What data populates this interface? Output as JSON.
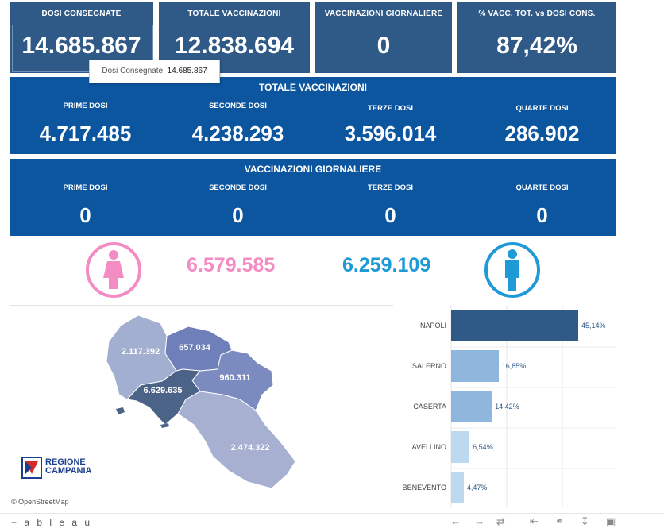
{
  "kpis": [
    {
      "title": "DOSI  CONSEGNATE",
      "value": "14.685.867"
    },
    {
      "title": "TOTALE VACCINAZIONI",
      "value": "12.838.694"
    },
    {
      "title": "VACCINAZIONI GIORNALIERE",
      "value": "0"
    },
    {
      "title": "% VACC. TOT. vs DOSI CONS.",
      "value": "87,42%"
    }
  ],
  "tooltip": {
    "label": "Dosi Consegnate:",
    "value": "14.685.867"
  },
  "totale": {
    "title": "TOTALE VACCINAZIONI",
    "cols": [
      {
        "label": "PRIME DOSI",
        "value": "4.717.485"
      },
      {
        "label": "SECONDE DOSI",
        "value": "4.238.293"
      },
      {
        "label": "TERZE DOSI",
        "value": "3.596.014"
      },
      {
        "label": "QUARTE DOSI",
        "value": "286.902"
      }
    ]
  },
  "giornaliere": {
    "title": "VACCINAZIONI GIORNALIERE",
    "cols": [
      {
        "label": "PRIME DOSI",
        "value": "0"
      },
      {
        "label": "SECONDE DOSI",
        "value": "0"
      },
      {
        "label": "TERZE DOSI",
        "value": "0"
      },
      {
        "label": "QUARTE DOSI",
        "value": "0"
      }
    ]
  },
  "gender": {
    "female": {
      "value": "6.579.585",
      "color": "#f48cc4",
      "icon": "female-icon"
    },
    "male": {
      "value": "6.259.109",
      "color": "#1e9ad6",
      "icon": "male-icon"
    }
  },
  "map": {
    "provinces": [
      {
        "name": "caserta",
        "value": "2.117.392",
        "color": "#a3afd0"
      },
      {
        "name": "benevento",
        "value": "657.034",
        "color": "#6f7fb9"
      },
      {
        "name": "avellino",
        "value": "960.311",
        "color": "#7b8bc0"
      },
      {
        "name": "napoli",
        "value": "6.629.635",
        "color": "#4a6387"
      },
      {
        "name": "salerno",
        "value": "2.474.322",
        "color": "#a7b0d1"
      }
    ],
    "logo_line1": "REGIONE",
    "logo_line2": "CAMPANIA",
    "attribution": "© OpenStreetMap"
  },
  "chart_data": {
    "type": "bar",
    "orientation": "horizontal",
    "categories": [
      "NAPOLI",
      "SALERNO",
      "CASERTA",
      "AVELLINO",
      "BENEVENTO"
    ],
    "values": [
      45.14,
      16.85,
      14.42,
      6.54,
      4.47
    ],
    "value_labels": [
      "45,14%",
      "16,85%",
      "14,42%",
      "6,54%",
      "4,47%"
    ],
    "colors": [
      "#2f5a88",
      "#8fb6dc",
      "#8fb6dc",
      "#bcd9ef",
      "#bcd9ef"
    ],
    "grid": true
  },
  "toolbar": {
    "logo": "+ a b l e a u",
    "icons": [
      "undo-icon",
      "redo-icon",
      "revert-icon",
      "reset-icon",
      "share-icon",
      "download-icon",
      "fullscreen-icon"
    ]
  }
}
